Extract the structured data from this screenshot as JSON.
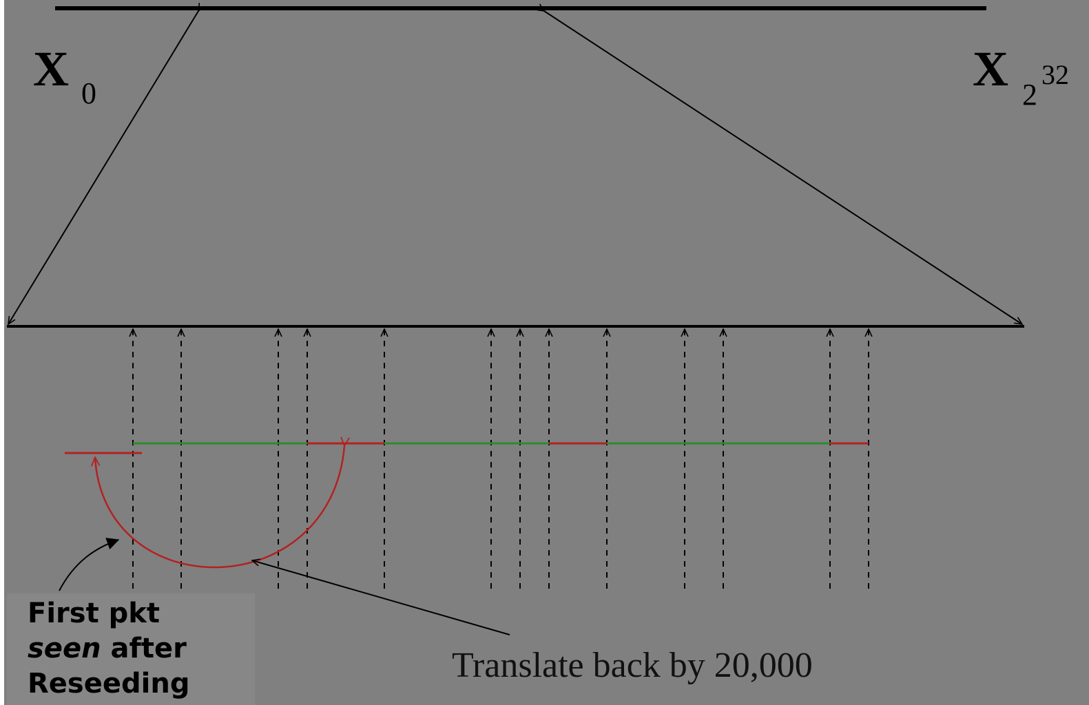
{
  "labels": {
    "x0": {
      "base": "X",
      "sub": "0"
    },
    "x_end": {
      "base": "X",
      "sub": "2",
      "sup": "32"
    },
    "translate": "Translate back by 20,000",
    "first_pkt": {
      "line1": "First pkt",
      "line2_em": "seen",
      "line2_rest": " after",
      "line3": "Reseeding"
    }
  },
  "colors": {
    "background": "#808080",
    "line": "#000000",
    "green_segment": "#2e8b2e",
    "red_segment": "#b22222",
    "left_panel": "#878787"
  }
}
